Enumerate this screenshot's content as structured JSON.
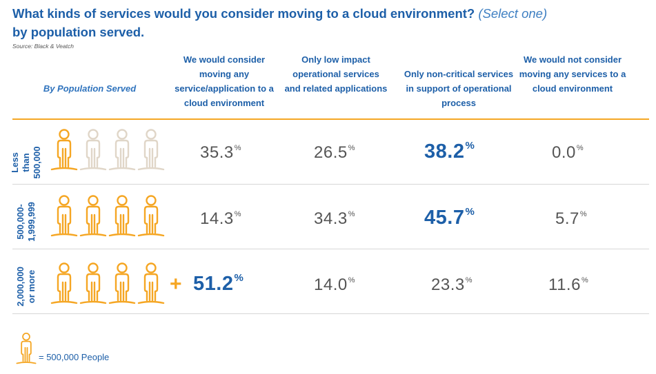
{
  "title": {
    "main_a": "What kinds of services would you consider moving to a cloud environment?",
    "sub": "(Select one)",
    "main_b": "by population served."
  },
  "source": "Source: Black & Veatch",
  "colors": {
    "accent_blue": "#1d5fa8",
    "accent_orange": "#f5a623",
    "inactive_person": "#e0d6c8",
    "value_gray": "#555555"
  },
  "legend": {
    "icon": "person-icon",
    "text": "= 500,000 People"
  },
  "chart_data": {
    "type": "table",
    "title": "What kinds of services would you consider moving to a cloud environment? (Select one) by population served.",
    "row_header": "By Population Served",
    "columns": [
      "We would consider moving any service/application to a cloud environment",
      "Only low impact operational services and related applications",
      "Only non-critical services in support of operational process",
      "We would not consider moving any services to a cloud environment"
    ],
    "rows": [
      {
        "label": "Less than 500,000",
        "people_active": 1,
        "people_total": 4,
        "plus": false,
        "values": [
          "35.3",
          "26.5",
          "38.2",
          "0.0"
        ],
        "highlight_index": 2
      },
      {
        "label": "500,000-1,999,999",
        "people_active": 4,
        "people_total": 4,
        "plus": false,
        "values": [
          "14.3",
          "34.3",
          "45.7",
          "5.7"
        ],
        "highlight_index": 2
      },
      {
        "label": "2,000,000 or more",
        "people_active": 4,
        "people_total": 4,
        "plus": true,
        "values": [
          "51.2",
          "14.0",
          "23.3",
          "11.6"
        ],
        "highlight_index": 0
      }
    ],
    "unit": "%",
    "plus_symbol": "+"
  }
}
